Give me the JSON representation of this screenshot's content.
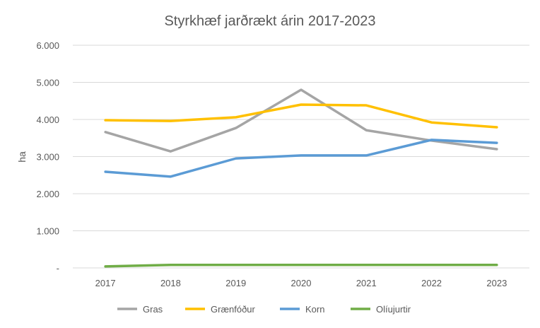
{
  "chart_data": {
    "type": "line",
    "title": "Styrkhæf jarðrækt árin 2017-2023",
    "xlabel": "",
    "ylabel": "ha",
    "categories": [
      "2017",
      "2018",
      "2019",
      "2020",
      "2021",
      "2022",
      "2023"
    ],
    "ylim": [
      0,
      6000
    ],
    "yticks": [
      0,
      1000,
      2000,
      3000,
      4000,
      5000,
      6000
    ],
    "ytick_labels": [
      "-",
      "1.000",
      "2.000",
      "3.000",
      "4.000",
      "5.000",
      "6.000"
    ],
    "grid": true,
    "legend_position": "bottom",
    "series": [
      {
        "name": "Gras",
        "color": "#A5A5A5",
        "values": [
          3660,
          3140,
          3770,
          4800,
          3710,
          3430,
          3200
        ]
      },
      {
        "name": "Grænfóður",
        "color": "#FFC000",
        "values": [
          3980,
          3960,
          4060,
          4400,
          4380,
          3920,
          3790
        ]
      },
      {
        "name": "Korn",
        "color": "#5B9BD5",
        "values": [
          2590,
          2460,
          2950,
          3030,
          3030,
          3450,
          3370
        ]
      },
      {
        "name": "Olíujurtir",
        "color": "#70AD47",
        "values": [
          40,
          80,
          80,
          80,
          80,
          80,
          80
        ]
      }
    ]
  }
}
